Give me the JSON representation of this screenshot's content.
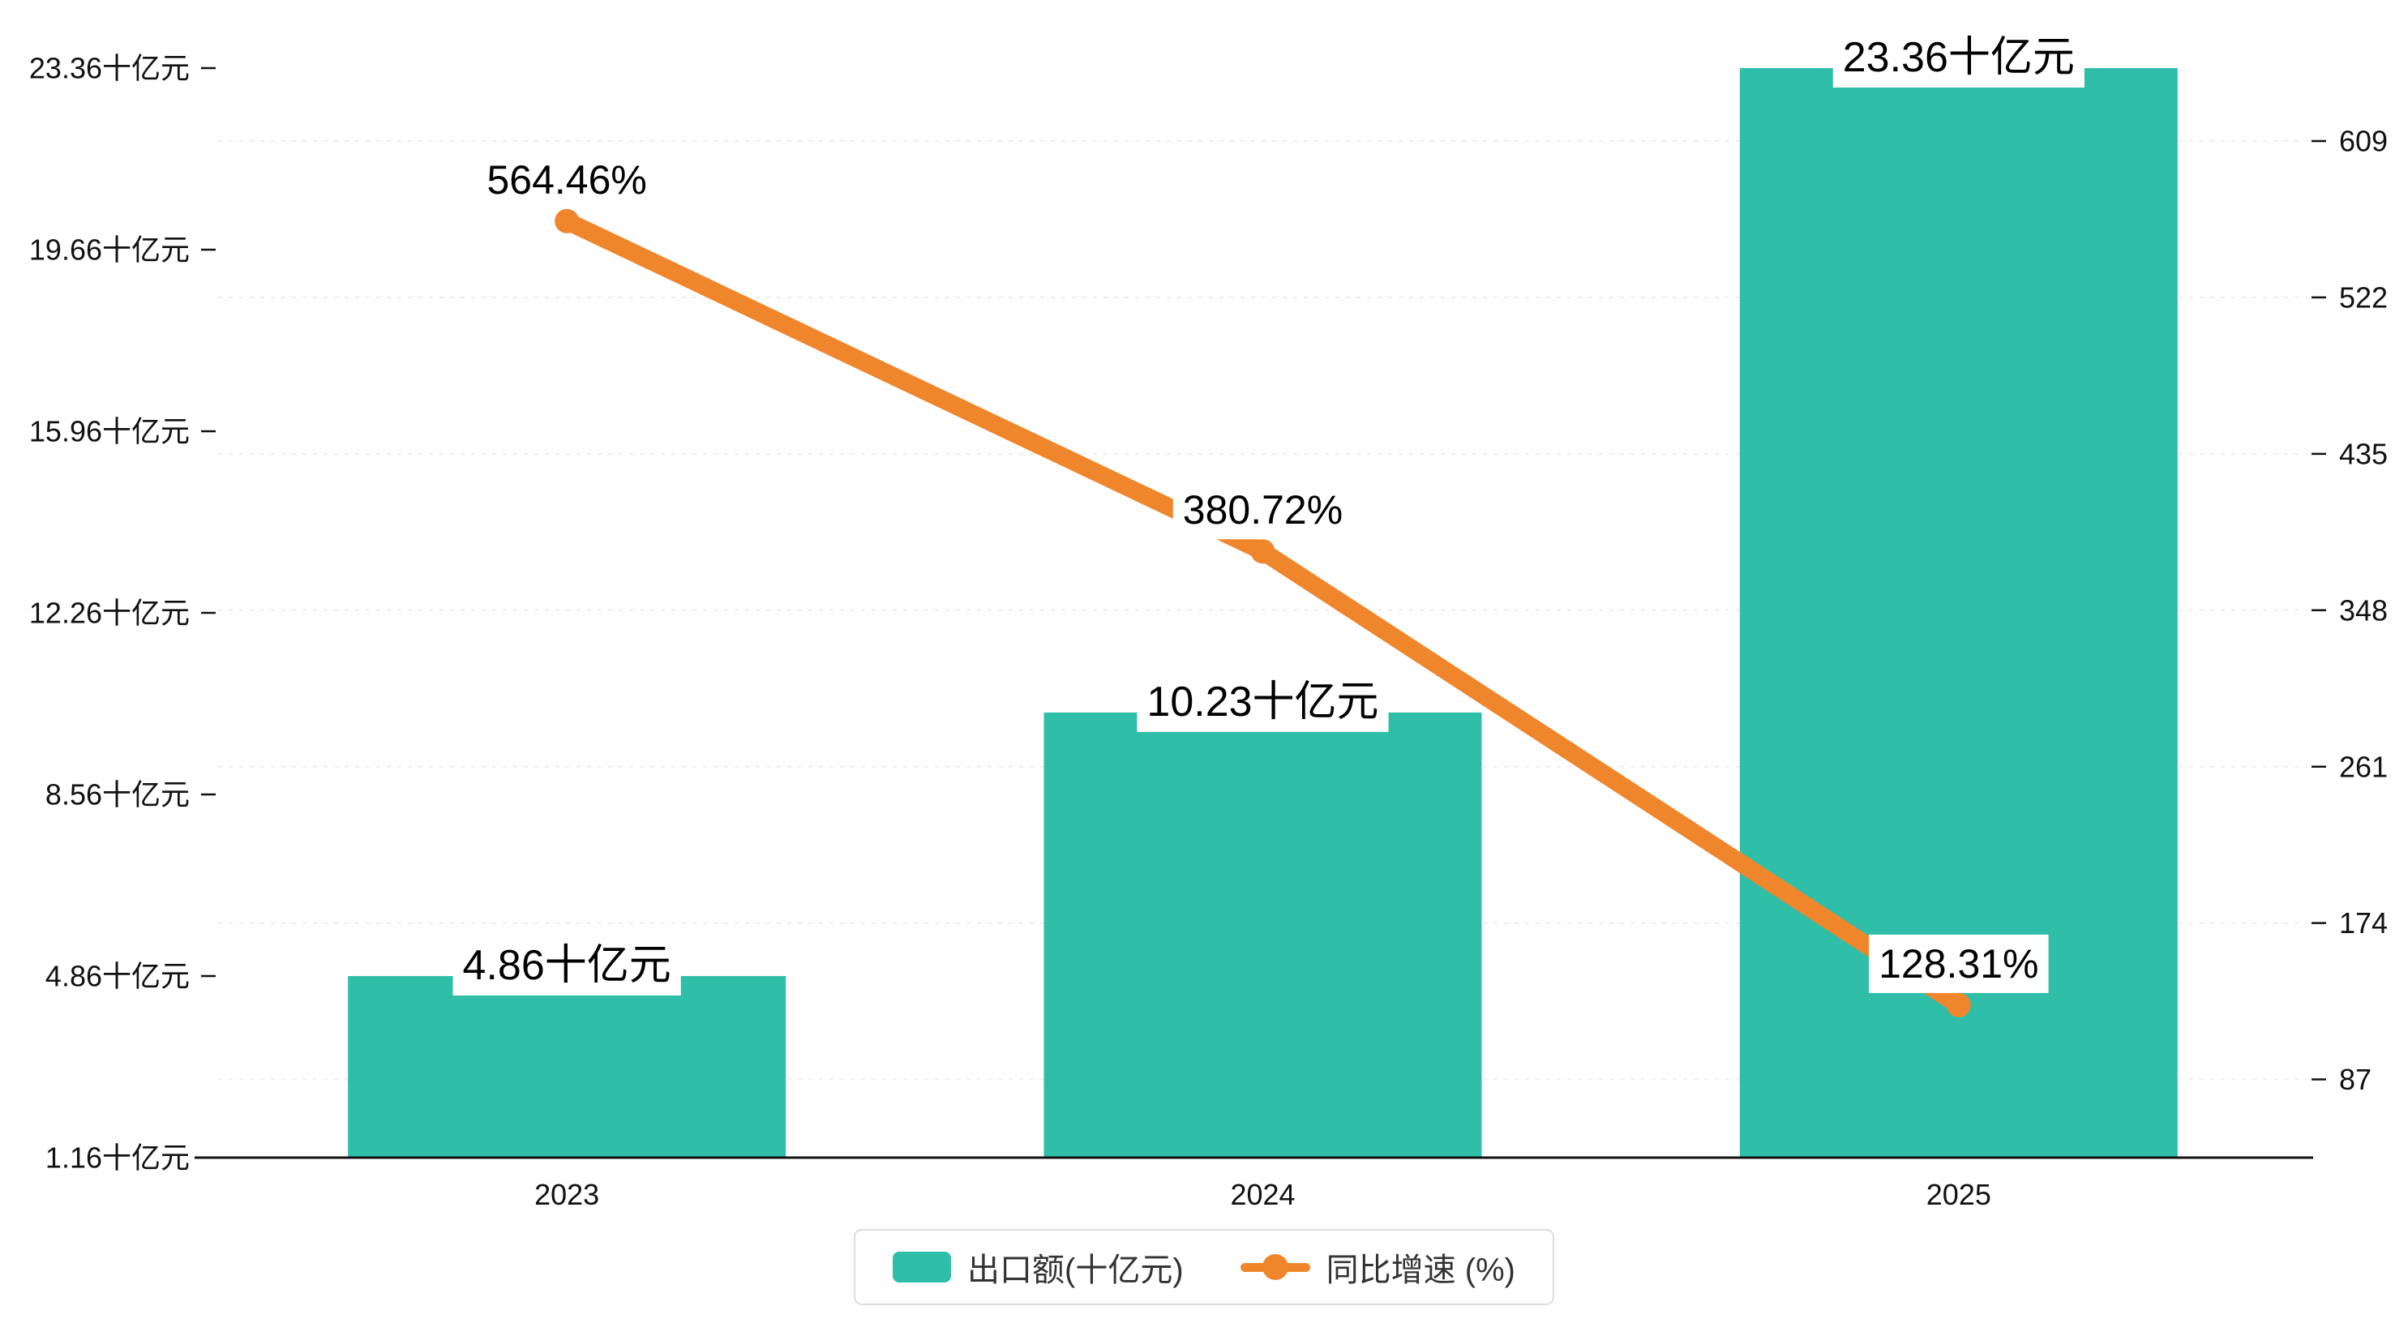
{
  "chart_data": {
    "type": "bar",
    "title": "",
    "categories": [
      "2023",
      "2024",
      "2025"
    ],
    "series": [
      {
        "name": "出口额(十亿元)",
        "type": "bar",
        "yaxis": "left",
        "color": "#2fbfa9",
        "values": [
          4.86,
          10.23,
          23.36
        ],
        "labels": [
          "4.86十亿元",
          "10.23十亿元",
          "23.36十亿元"
        ]
      },
      {
        "name": "同比增速 (%)",
        "type": "line",
        "yaxis": "right",
        "color": "#f0862c",
        "values": [
          564.46,
          380.72,
          128.31
        ],
        "labels": [
          "564.46%",
          "380.72%",
          "128.31%"
        ]
      }
    ],
    "left_axis": {
      "tick_labels": [
        "1.16十亿元",
        "4.86十亿元",
        "8.56十亿元",
        "12.26十亿元",
        "15.96十亿元",
        "19.66十亿元",
        "23.36十亿元"
      ],
      "tick_values": [
        1.16,
        4.86,
        8.56,
        12.26,
        15.96,
        19.66,
        23.36
      ],
      "min": 1.16,
      "max": 23.36
    },
    "right_axis": {
      "tick_labels": [
        "87",
        "174",
        "261",
        "348",
        "435",
        "522",
        "609"
      ],
      "tick_values": [
        87,
        174,
        261,
        348,
        435,
        522,
        609
      ],
      "min": 43.5,
      "max": 609
    },
    "xlabel": "",
    "ylabel": "",
    "grid": true,
    "legend": {
      "position": "bottom",
      "items": [
        {
          "label": "出口额(十亿元)",
          "marker": "bar",
          "color": "#2fbfa9"
        },
        {
          "label": "同比增速 (%)",
          "marker": "line",
          "color": "#f0862c"
        }
      ]
    }
  },
  "colors": {
    "bar": "#2fbfa9",
    "line": "#f0862c",
    "axis_text": "#111111",
    "axis_line": "#111111",
    "grid_line": "#ececec",
    "label_text": "#000000",
    "label_bg": "#ffffff",
    "background": "#ffffff"
  }
}
